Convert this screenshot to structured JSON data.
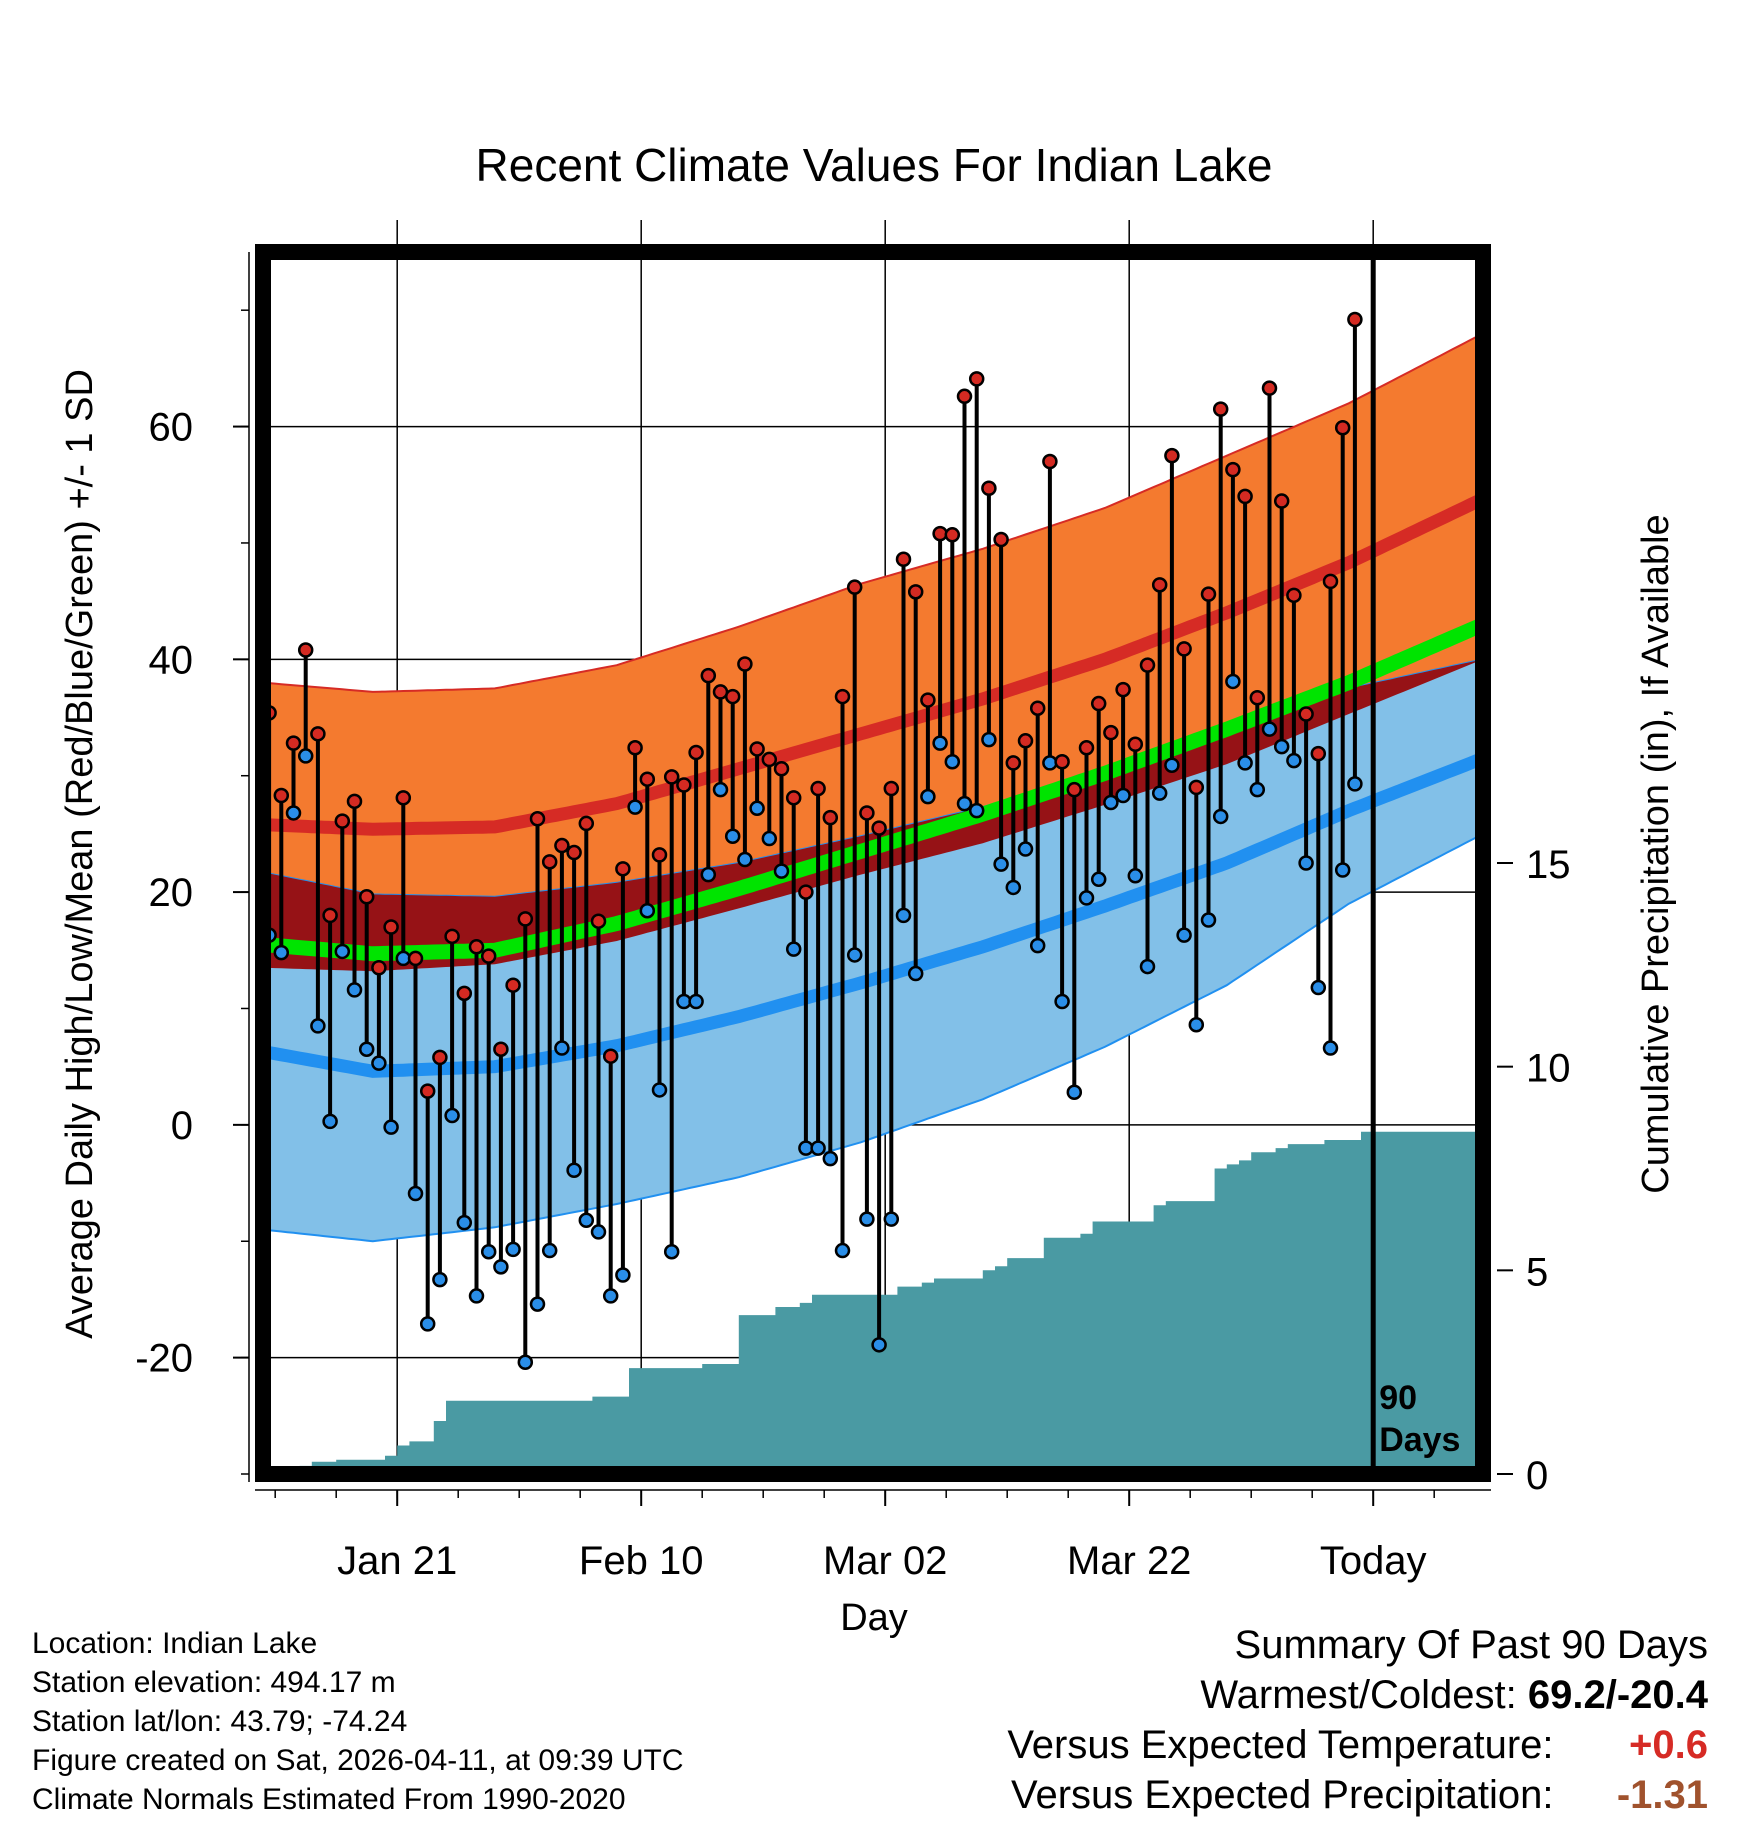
{
  "chart_data": {
    "type": "line",
    "title": "Recent Climate Values For Indian Lake",
    "xlabel": "Day",
    "ylabel": "Average Daily High/Low/Mean (Red/Blue/Green) +/- 1 SD",
    "y2label": "Cumulative Precipitation (in), If Available",
    "x_range": [
      1,
      101
    ],
    "ylim": [
      -30,
      75
    ],
    "y_ticks": [
      -20,
      0,
      20,
      40,
      60
    ],
    "y_tick_labels": [
      "-20",
      "0",
      "20",
      "40",
      "60"
    ],
    "y2lim": [
      0,
      30
    ],
    "y2_ticks": [
      0,
      5,
      10,
      15
    ],
    "y2_tick_labels": [
      "0",
      "5",
      "10",
      "15"
    ],
    "x_ticks": [
      {
        "x": 12,
        "label": "Jan 21"
      },
      {
        "x": 32,
        "label": "Feb 10"
      },
      {
        "x": 52,
        "label": "Mar 02"
      },
      {
        "x": 72,
        "label": "Mar 22"
      },
      {
        "x": 92,
        "label": "Today"
      }
    ],
    "today_marker": {
      "x": 92,
      "label_line1": "90",
      "label_line2": "Days"
    },
    "normals": {
      "days": [
        1,
        10,
        20,
        30,
        40,
        50,
        60,
        70,
        80,
        90,
        101
      ],
      "high_upper": [
        38,
        37.2,
        37.5,
        39.5,
        42.8,
        46.5,
        49.5,
        53,
        57.5,
        62,
        68
      ],
      "high_mean": [
        25.8,
        25.4,
        25.6,
        27.6,
        30.6,
        33.6,
        36.6,
        40,
        44,
        48.3,
        53.8
      ],
      "high_lower": [
        13.5,
        13.2,
        13.8,
        15.8,
        18.6,
        21.5,
        24.2,
        27.5,
        31,
        35.3,
        40
      ],
      "mean": [
        15.5,
        14.7,
        15,
        17.3,
        20.3,
        23.5,
        26.7,
        30.2,
        34,
        38,
        43
      ],
      "low_upper": [
        21.7,
        19.8,
        19.6,
        20.8,
        22.5,
        24.8,
        27.3,
        30.5,
        33.8,
        37.5,
        40
      ],
      "low_mean": [
        6.3,
        4.6,
        5,
        6.8,
        9.3,
        12.2,
        15.3,
        18.8,
        22.5,
        27,
        31.5
      ],
      "low_lower": [
        -9,
        -10,
        -8.8,
        -6.8,
        -4.5,
        -1.5,
        2.2,
        6.7,
        12,
        19,
        25
      ]
    },
    "daily_high": [
      35.4,
      28.3,
      32.8,
      40.8,
      33.6,
      18,
      26.1,
      27.8,
      19.6,
      13.5,
      17,
      28.1,
      14.3,
      2.9,
      5.8,
      16.2,
      11.3,
      15.3,
      14.5,
      6.5,
      12,
      17.7,
      26.3,
      22.6,
      24,
      23.4,
      25.9,
      17.5,
      5.9,
      22,
      32.4,
      29.7,
      23.2,
      29.9,
      29.2,
      32,
      38.6,
      37.2,
      36.8,
      39.6,
      32.3,
      31.4,
      30.6,
      28.1,
      20,
      28.9,
      26.4,
      36.8,
      46.2,
      26.8,
      25.5,
      28.9,
      48.6,
      45.8,
      36.5,
      50.8,
      50.7,
      62.6,
      64.1,
      54.7,
      50.3,
      31.1,
      33,
      35.8,
      57,
      31.2,
      28.8,
      32.4,
      36.2,
      33.7,
      37.4,
      32.7,
      39.5,
      46.4,
      57.5,
      40.9,
      29,
      45.6,
      61.5,
      56.3,
      54,
      36.7,
      63.3,
      53.6,
      45.5,
      35.3,
      31.9,
      46.7,
      59.9,
      69.2
    ],
    "daily_low": [
      16.3,
      14.8,
      26.8,
      31.7,
      8.5,
      0.3,
      14.9,
      11.6,
      6.5,
      5.3,
      -0.2,
      14.3,
      -5.9,
      -17.1,
      -13.3,
      0.8,
      -8.4,
      -14.7,
      -10.9,
      -12.2,
      -10.7,
      -20.4,
      -15.4,
      -10.8,
      6.6,
      -3.9,
      -8.2,
      -9.2,
      -14.7,
      -12.9,
      27.3,
      18.4,
      3,
      -10.9,
      10.6,
      10.6,
      21.5,
      28.8,
      24.8,
      22.8,
      27.2,
      24.6,
      21.8,
      15.1,
      -2,
      -2,
      -2.9,
      -10.8,
      14.6,
      -8.1,
      -18.9,
      -8.1,
      18,
      13,
      28.2,
      32.8,
      31.2,
      27.6,
      27,
      33.1,
      22.4,
      20.4,
      23.7,
      15.4,
      31.1,
      10.6,
      2.8,
      19.5,
      21.1,
      27.7,
      28.3,
      21.4,
      13.6,
      28.5,
      30.9,
      16.3,
      8.6,
      17.6,
      26.5,
      38.1,
      31.1,
      28.8,
      34,
      32.5,
      31.3,
      22.5,
      11.8,
      6.6,
      21.9,
      29.3
    ],
    "precip_cumulative": {
      "x": [
        1,
        4,
        5,
        7,
        9,
        11,
        12,
        13,
        14,
        15,
        16,
        17,
        18,
        19,
        20,
        21,
        22,
        23,
        24,
        25,
        26,
        27,
        28,
        29,
        30,
        31,
        32,
        33,
        34,
        35,
        36,
        37,
        38,
        39,
        40,
        41,
        42,
        43,
        44,
        45,
        46,
        47,
        48,
        49,
        50,
        51,
        52,
        53,
        54,
        55,
        56,
        57,
        58,
        59,
        60,
        61,
        62,
        63,
        64,
        65,
        66,
        67,
        68,
        69,
        70,
        71,
        72,
        73,
        74,
        75,
        76,
        77,
        78,
        79,
        80,
        81,
        82,
        83,
        84,
        85,
        86,
        87,
        88,
        89,
        90,
        91,
        92,
        101
      ],
      "values": [
        0,
        0.2,
        0.3,
        0.35,
        0.35,
        0.45,
        0.7,
        0.8,
        0.8,
        1.3,
        1.8,
        1.8,
        1.8,
        1.8,
        1.8,
        1.8,
        1.8,
        1.8,
        1.8,
        1.8,
        1.8,
        1.8,
        1.9,
        1.9,
        1.9,
        2.6,
        2.6,
        2.6,
        2.6,
        2.6,
        2.6,
        2.7,
        2.7,
        2.7,
        3.9,
        3.9,
        3.9,
        4.1,
        4.1,
        4.2,
        4.4,
        4.4,
        4.4,
        4.4,
        4.4,
        4.4,
        4.4,
        4.6,
        4.6,
        4.7,
        4.8,
        4.8,
        4.8,
        4.8,
        5,
        5.1,
        5.3,
        5.3,
        5.3,
        5.8,
        5.8,
        5.8,
        5.9,
        6.2,
        6.2,
        6.2,
        6.2,
        6.2,
        6.6,
        6.7,
        6.7,
        6.7,
        6.7,
        7.5,
        7.6,
        7.7,
        7.9,
        7.9,
        8,
        8.1,
        8.1,
        8.1,
        8.2,
        8.2,
        8.2,
        8.4,
        8.4,
        8.4
      ]
    }
  },
  "footer": {
    "location": "Location: Indian Lake",
    "elevation": "Station elevation: 494.17 m",
    "latlon": "Station lat/lon: 43.79; -74.24",
    "created": "Figure created on Sat, 2026-04-11, at 09:39 UTC",
    "normals_period": "Climate Normals Estimated From 1990-2020"
  },
  "summary": {
    "heading": "Summary Of Past 90 Days",
    "warm_cold_label": "Warmest/Coldest:",
    "warm_cold_value": "69.2/-20.4",
    "temp_label": "Versus Expected Temperature:",
    "temp_value": "+0.6",
    "precip_label": "Versus Expected Precipitation:",
    "precip_value": "-1.31"
  },
  "colors": {
    "high_band": "#f47a2f",
    "high_mean": "#d62b25",
    "low_band": "#82c0e8",
    "low_mean": "#2190f0",
    "overlap_band": "#961216",
    "mean_line": "#00e400",
    "precip_fill": "#4a9aa3",
    "high_marker": "#d42a22",
    "low_marker": "#2a8ee8",
    "temp_anomaly": "#d62b25",
    "precip_anomaly": "#a0522d"
  }
}
